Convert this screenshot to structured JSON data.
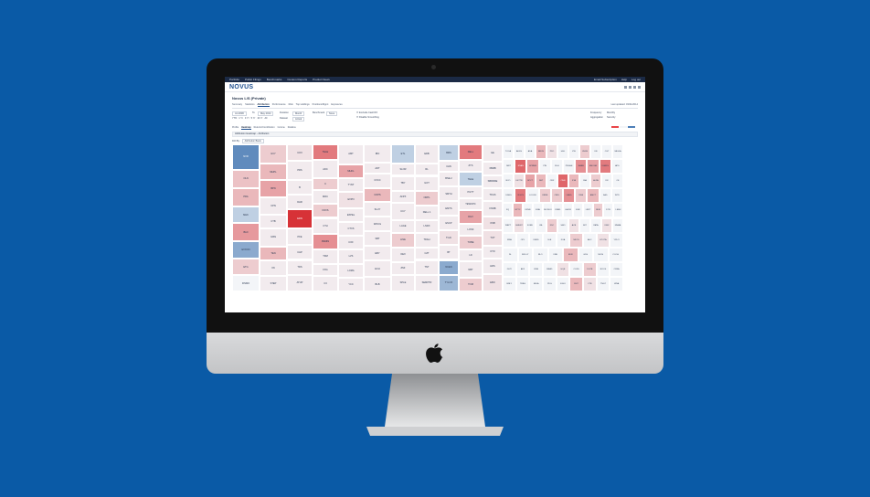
{
  "app": {
    "topbar_items": [
      "Portfolio",
      "Public Filings",
      "Benchmarks",
      "Custom Reports",
      "Product News"
    ],
    "topbar_right": [
      "Email Subscription",
      "Help",
      "Log out"
    ],
    "brand": "NOVUS",
    "page_title": "Novus L/S (Private)",
    "tabs": [
      "Summary",
      "Statistics",
      "Attribution",
      "Performance",
      "Risk",
      "Top Holdings",
      "Positions/Mgmt",
      "Exposures"
    ],
    "active_tab": 2,
    "last_updated": "Last updated: 03/31/2014",
    "controls": {
      "date_from": "Jul 2006",
      "to_label": "To",
      "date_to": "May 2014",
      "duration_label": "Duration",
      "duration_value": "Month",
      "dataset_label": "Dataset",
      "dataset_value": "Actual",
      "benchmark_label": "Benchmark",
      "benchmark_value": "None",
      "range_chips": [
        "YTD",
        "1 Yr",
        "3 Yr",
        "5 Yr",
        "10 Yr",
        "All"
      ],
      "options": [
        "Exclude Cash/FX",
        "Disable Smoothing"
      ],
      "frequency_label": "Frequency",
      "frequency_value": "Monthly",
      "aggregation_label": "Aggregation",
      "aggregation_value": "Security"
    },
    "subtabs": [
      "Profile",
      "Heatmap",
      "Returns/Contribution",
      "Income",
      "Relative"
    ],
    "active_subtab": 1,
    "panel_title": "Attribution Heatmap – Attribution",
    "drill_label": "Drill By:",
    "drill_value": "Attribution Basis",
    "colors": {
      "positive": "#e94448",
      "neutral": "#f3f5f8",
      "negative": "#4d7fb8"
    }
  },
  "heatmap": {
    "columns": [
      {
        "cells": [
          [
            "NVR",
            -0.85,
            28
          ],
          [
            "OLN",
            0.25,
            20
          ],
          [
            "PRA",
            0.3,
            20
          ],
          [
            "MHK",
            -0.3,
            19
          ],
          [
            "BLD",
            0.45,
            20
          ],
          [
            "EXXON",
            -0.6,
            19
          ],
          [
            "ETG",
            0.2,
            18
          ],
          [
            "FINMO",
            0,
            18
          ]
        ]
      },
      {
        "cells": [
          [
            "GVY",
            0.2,
            20
          ],
          [
            "MHPL",
            0.3,
            16
          ],
          [
            "BPN",
            0.4,
            18
          ],
          [
            "CPN",
            0.05,
            18
          ],
          [
            "CTB",
            0.05,
            14
          ],
          [
            "IHSS",
            0.05,
            18
          ],
          [
            "TEN",
            0.3,
            14
          ],
          [
            "IIN",
            0.05,
            16
          ],
          [
            "STEP",
            0.05,
            16
          ]
        ]
      },
      {
        "cells": [
          [
            "COX",
            0.1,
            16
          ],
          [
            "PRS",
            0.05,
            18
          ],
          [
            "B",
            0.05,
            14
          ],
          [
            "DHR",
            0.05,
            14
          ],
          [
            "EDN",
            0.95,
            18
          ],
          [
            "PFE",
            0.05,
            16
          ],
          [
            "CHP",
            0.05,
            14
          ],
          [
            "TDS",
            0.05,
            14
          ],
          [
            "ATUP",
            0.05,
            16
          ]
        ]
      },
      {
        "cells": [
          [
            "TELE",
            0.6,
            16
          ],
          [
            "ADC",
            0.05,
            18
          ],
          [
            "C",
            0.2,
            12
          ],
          [
            "MRC",
            0.05,
            14
          ],
          [
            "FDXS",
            0.2,
            14
          ],
          [
            "CTH",
            0.05,
            16
          ],
          [
            "PEMIN",
            0.5,
            16
          ],
          [
            "TDM",
            0.05,
            14
          ],
          [
            "FXG",
            0.05,
            12
          ],
          [
            "C3",
            0.05,
            16
          ]
        ]
      },
      {
        "cells": [
          [
            "AMT",
            0.05,
            20
          ],
          [
            "MHKL",
            0.4,
            14
          ],
          [
            "TYNT",
            0.05,
            14
          ],
          [
            "EXPN",
            0.1,
            16
          ],
          [
            "EXPEL",
            0.05,
            14
          ],
          [
            "CTXS",
            0.05,
            14
          ],
          [
            "COF",
            0.05,
            14
          ],
          [
            "LVS",
            0.05,
            14
          ],
          [
            "LOMA",
            0.05,
            14
          ],
          [
            "YCC",
            0.05,
            14
          ]
        ]
      },
      {
        "cells": [
          [
            "IBO",
            0.05,
            18
          ],
          [
            "ADT",
            0.05,
            10
          ],
          [
            "CXCC",
            0.05,
            14
          ],
          [
            "COPS",
            0.3,
            14
          ],
          [
            "SLUY",
            0.05,
            14
          ],
          [
            "WOCG",
            0.05,
            14
          ],
          [
            "SBT",
            0.05,
            14
          ],
          [
            "EBY",
            0.05,
            14
          ],
          [
            "ECH",
            0.05,
            16
          ],
          [
            "BLB",
            0.05,
            14
          ]
        ]
      },
      {
        "cells": [
          [
            "ETL",
            -0.3,
            18
          ],
          [
            "SLOR",
            0.05,
            12
          ],
          [
            "TBY",
            0.05,
            14
          ],
          [
            "AFPX",
            0.05,
            12
          ],
          [
            "CCY",
            0.05,
            16
          ],
          [
            "LAGE",
            0.05,
            12
          ],
          [
            "LINE",
            0.2,
            14
          ],
          [
            "OEX",
            0.05,
            14
          ],
          [
            "ZNF",
            0.05,
            12
          ],
          [
            "SPLE",
            0.05,
            16
          ]
        ]
      },
      {
        "cells": [
          [
            "EDB",
            0.05,
            18
          ],
          [
            "RL",
            0.05,
            12
          ],
          [
            "GOT",
            0.05,
            14
          ],
          [
            "ORPL",
            0.2,
            14
          ],
          [
            "DELL 1",
            0.05,
            14
          ],
          [
            "LNDX",
            0.05,
            12
          ],
          [
            "TDAH",
            0.05,
            14
          ],
          [
            "CZT",
            0.05,
            12
          ],
          [
            "TNT",
            0.05,
            14
          ],
          [
            "SEMPTR",
            0.05,
            16
          ]
        ]
      },
      {
        "cells": [
          [
            "BMS",
            -0.3,
            16
          ],
          [
            "CHN",
            0.05,
            10
          ],
          [
            "BNE 2",
            0.05,
            14
          ],
          [
            "SMTH",
            0.05,
            14
          ],
          [
            "EMTS",
            0.05,
            14
          ],
          [
            "ESCP",
            0.05,
            14
          ],
          [
            "TCAI",
            0.1,
            14
          ],
          [
            "BT",
            0.05,
            14
          ],
          [
            "NCEN",
            -0.6,
            14
          ],
          [
            "TYLOX",
            -0.5,
            16
          ]
        ]
      },
      {
        "cells": [
          [
            "DELL",
            0.6,
            16
          ],
          [
            "ZTS",
            0.05,
            12
          ],
          [
            "TELE",
            -0.3,
            14
          ],
          [
            "PGTT",
            0.05,
            12
          ],
          [
            "TEWOPC",
            0.05,
            12
          ],
          [
            "DGV",
            0.4,
            14
          ],
          [
            "LOSK",
            0.05,
            12
          ],
          [
            "TOBE",
            0.2,
            14
          ],
          [
            "LD",
            0.05,
            12
          ],
          [
            "NBT",
            0.05,
            16
          ],
          [
            "TOM",
            0.2,
            14
          ]
        ]
      },
      {
        "cells": [
          [
            "GE",
            0.05,
            16
          ],
          [
            "XBMB",
            0.05,
            12
          ],
          [
            "SBRRDE",
            0.05,
            12
          ],
          [
            "TKGS",
            0.05,
            12
          ],
          [
            "FNNB",
            0.05,
            14
          ],
          [
            "OSB",
            0.1,
            12
          ],
          [
            "TOT",
            0.1,
            14
          ],
          [
            "OTO",
            0.05,
            12
          ],
          [
            "HRS",
            0.05,
            14
          ],
          [
            "EBO",
            0.1,
            16
          ]
        ]
      }
    ],
    "right_rows": [
      [
        "TOOA",
        "ADSS",
        "ADA",
        "BRCE",
        "PFO",
        "HGL",
        "KW",
        "VHSN",
        "KB",
        "CGT",
        "SBGLA"
      ],
      [
        "MRT",
        "ENAN",
        "SPRNM",
        "PIN",
        "RLH",
        "PNGHE",
        "RABB",
        "EMOGR",
        "XGRFS",
        "APS"
      ],
      [
        "BCO",
        "USTTR",
        "SPCT",
        "DBT",
        "CRX",
        "ONN",
        "FTA",
        "INA",
        "ALPA",
        "XIV",
        "CE"
      ],
      [
        "DBGS",
        "RGCS",
        "LOOGX",
        "ORRE",
        "CBFL",
        "LABG",
        "SWE",
        "AMCT",
        "SAG",
        "WTD"
      ],
      [
        "XQ",
        "EPTC",
        "KFNB",
        "ENA",
        "MODUO",
        "FIBRL",
        "GHOR",
        "ENK",
        "LBXT",
        "BFM",
        "DTIX",
        "LEBU"
      ],
      [
        "WBPT",
        "SMENT",
        "FORD",
        "JBL",
        "FDC",
        "SMO",
        "ACB",
        "MIT",
        "PATA",
        "DMX",
        "NNMA"
      ],
      [
        "WFA",
        "OPL",
        "FERD",
        "SLE",
        "FOA",
        "MFCS",
        "ADC",
        "ETOTA",
        "YPLCI"
      ],
      [
        "DL",
        "MOLLY",
        "RLO",
        "FNE",
        "EDR",
        "GDS",
        "MOIS",
        "COOG"
      ],
      [
        "DUTI",
        "AFF",
        "RPA",
        "BRAD",
        "HQE",
        "CLIFS",
        "DGTB",
        "ROOS",
        "CFRA"
      ],
      [
        "BNLY",
        "TRBG",
        "EBLA",
        "PDG",
        "EIGU",
        "FEIT",
        "CTB",
        "TNGT",
        "WNA"
      ]
    ],
    "right_shades": [
      [
        0,
        0,
        0,
        0.3,
        0.1,
        0,
        0,
        0.2,
        0,
        0,
        0
      ],
      [
        0,
        0.7,
        0.4,
        0,
        0,
        0,
        0.5,
        0.4,
        0.6,
        0
      ],
      [
        0,
        0.1,
        0.4,
        0.3,
        0,
        0.7,
        0.3,
        0,
        0.2,
        0,
        0
      ],
      [
        0,
        0.6,
        0,
        0.2,
        0.2,
        0.5,
        0.2,
        0.3,
        0,
        0
      ],
      [
        0,
        0.3,
        0,
        0,
        0,
        0,
        0,
        0,
        0,
        0.2,
        0,
        0
      ],
      [
        0,
        0.1,
        0,
        0,
        0.2,
        0,
        0.1,
        0,
        0,
        0.1,
        0
      ],
      [
        0,
        0,
        0,
        0,
        0,
        0.2,
        0,
        0.1,
        0
      ],
      [
        0,
        0,
        0,
        0,
        0.3,
        0,
        0,
        0
      ],
      [
        0,
        0,
        0,
        0,
        0.1,
        0,
        0.2,
        0,
        0
      ],
      [
        0,
        0,
        0,
        0,
        0,
        0.3,
        0.1,
        0,
        0
      ]
    ]
  }
}
